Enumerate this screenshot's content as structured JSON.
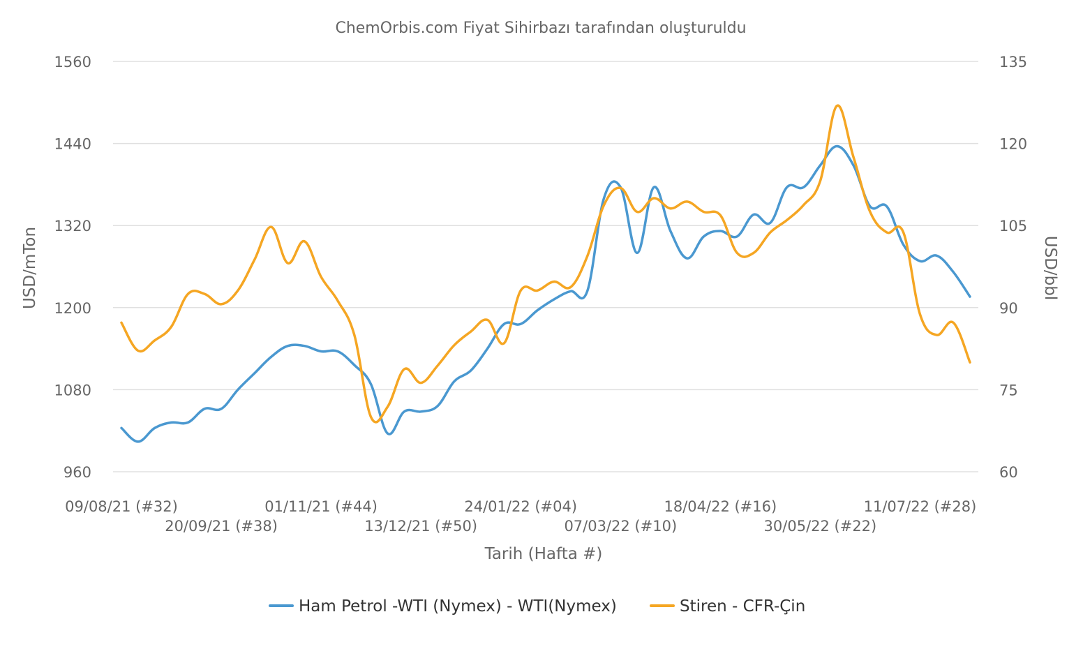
{
  "chart_data": {
    "type": "line",
    "title": "ChemOrbis.com Fiyat Sihirbazı tarafından oluşturuldu",
    "xlabel": "Tarih (Hafta #)",
    "ylabel_left": "USD/mTon",
    "ylabel_right": "USD/bbl",
    "ylim_left": [
      960,
      1560
    ],
    "ylim_right": [
      60,
      135
    ],
    "yticks_left": [
      "960",
      "1080",
      "1200",
      "1320",
      "1440",
      "1560"
    ],
    "yticks_right": [
      "60",
      "75",
      "90",
      "105",
      "120",
      "135"
    ],
    "grid": true,
    "legend_position": "bottom",
    "x_week_labels": [
      "09/08/21 (#32)",
      "20/09/21 (#38)",
      "01/11/21 (#44)",
      "13/12/21 (#50)",
      "24/01/22 (#04)",
      "07/03/22 (#10)",
      "18/04/22 (#16)",
      "30/05/22 (#22)",
      "11/07/22 (#28)"
    ],
    "x_week_label_index": [
      0,
      6,
      12,
      18,
      24,
      30,
      36,
      42,
      48
    ],
    "n_weeks": 52,
    "series": [
      {
        "name": "Ham Petrol -WTI (Nymex) - WTI(Nymex)",
        "axis": "right",
        "color": "#4a98d0",
        "values": [
          68,
          65.5,
          68,
          69,
          69,
          71.5,
          71.5,
          75,
          78,
          81,
          83,
          83,
          82,
          82,
          79.5,
          76,
          67,
          71,
          71,
          72,
          76.5,
          78.5,
          82.5,
          87,
          87,
          89.5,
          91.5,
          93,
          93,
          110,
          112,
          100,
          112,
          104,
          99,
          103,
          104,
          103,
          107,
          105.5,
          112,
          112,
          116,
          119.5,
          116,
          108.5,
          108.5,
          101.5,
          98.5,
          99.5,
          96.5,
          92
        ]
      },
      {
        "name": "Stiren - CFR-Çin",
        "axis": "left",
        "color": "#f5a623",
        "values": [
          1178,
          1137,
          1152,
          1172,
          1220,
          1220,
          1205,
          1225,
          1270,
          1318,
          1265,
          1297,
          1245,
          1210,
          1160,
          1040,
          1055,
          1110,
          1090,
          1115,
          1145,
          1165,
          1182,
          1148,
          1225,
          1225,
          1238,
          1230,
          1275,
          1350,
          1375,
          1340,
          1360,
          1345,
          1355,
          1340,
          1335,
          1280,
          1280,
          1310,
          1328,
          1350,
          1385,
          1495,
          1420,
          1340,
          1310,
          1310,
          1190,
          1160,
          1178,
          1120
        ]
      }
    ]
  }
}
